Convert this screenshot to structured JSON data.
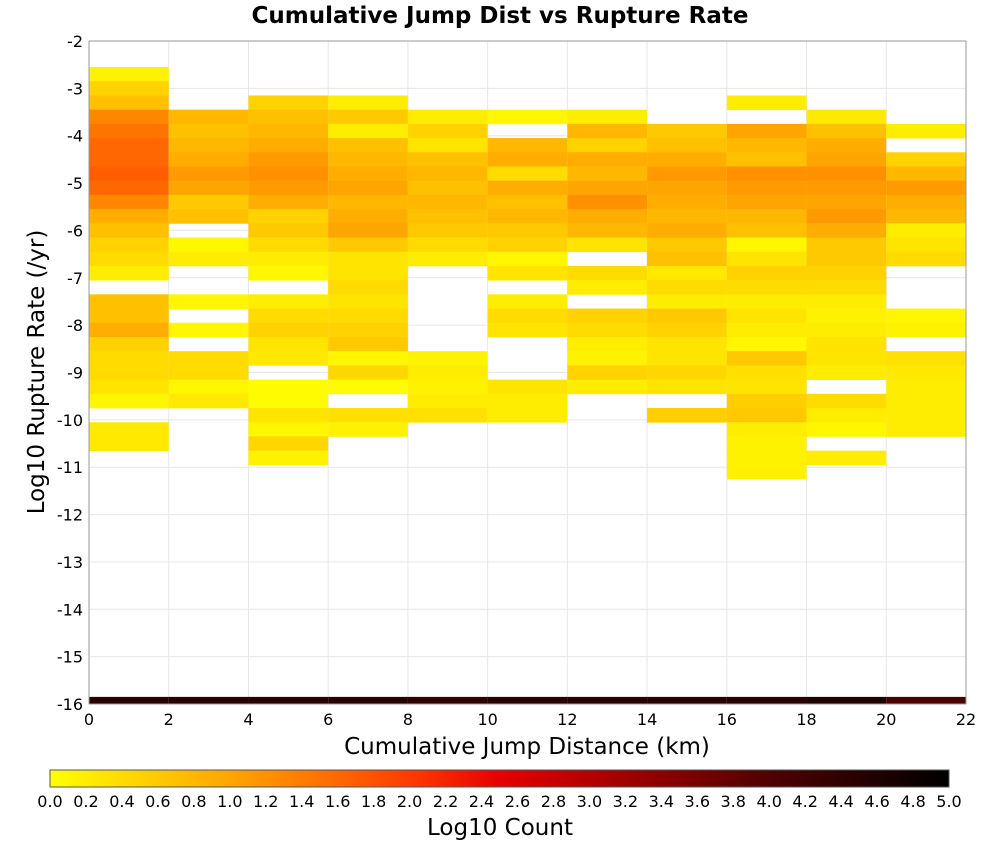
{
  "chart_data": {
    "type": "heatmap",
    "title": "Cumulative Jump Dist vs Rupture Rate",
    "xlabel": "Cumulative Jump Distance (km)",
    "ylabel": "Log10 Rupture Rate (/yr)",
    "colorbar_label": "Log10 Count",
    "xlim": [
      0,
      22
    ],
    "ylim": [
      -16,
      -2
    ],
    "x_ticks": [
      0,
      2,
      4,
      6,
      8,
      10,
      12,
      14,
      16,
      18,
      20,
      22
    ],
    "y_ticks": [
      -2,
      -3,
      -4,
      -5,
      -6,
      -7,
      -8,
      -9,
      -10,
      -11,
      -12,
      -13,
      -14,
      -15,
      -16
    ],
    "colorbar_range": [
      0,
      5
    ],
    "colorbar_ticks": [
      "0.0",
      "0.2",
      "0.4",
      "0.6",
      "0.8",
      "1.0",
      "1.2",
      "1.4",
      "1.6",
      "1.8",
      "2.0",
      "2.2",
      "2.4",
      "2.6",
      "2.8",
      "3.0",
      "3.2",
      "3.4",
      "3.6",
      "3.8",
      "4.0",
      "4.2",
      "4.4",
      "4.6",
      "4.8",
      "5.0"
    ],
    "colorscale": [
      "#ffff00",
      "#ffd200",
      "#ffa500",
      "#ff7300",
      "#ff3c00",
      "#e60000",
      "#b40000",
      "#820000",
      "#500000",
      "#280000",
      "#000000"
    ],
    "x_bin_width": 2,
    "y_bin_height": 0.3,
    "grid": true,
    "columns": [
      {
        "x0": 0,
        "cells": [
          [
            -2.85,
            0.15
          ],
          [
            -3.15,
            0.5
          ],
          [
            -3.45,
            0.7
          ],
          [
            -3.75,
            1.3
          ],
          [
            -4.05,
            1.5
          ],
          [
            -4.35,
            1.6
          ],
          [
            -4.65,
            1.6
          ],
          [
            -4.95,
            1.7
          ],
          [
            -5.25,
            1.6
          ],
          [
            -5.55,
            1.3
          ],
          [
            -5.85,
            0.9
          ],
          [
            -6.15,
            0.7
          ],
          [
            -6.45,
            0.5
          ],
          [
            -6.75,
            0.4
          ],
          [
            -7.05,
            0.2
          ],
          [
            -7.65,
            0.7
          ],
          [
            -7.95,
            0.7
          ],
          [
            -8.25,
            0.9
          ],
          [
            -8.55,
            0.5
          ],
          [
            -8.85,
            0.4
          ],
          [
            -9.15,
            0.4
          ],
          [
            -9.45,
            0.3
          ],
          [
            -9.75,
            0.1
          ],
          [
            -10.35,
            0.25
          ],
          [
            -10.65,
            0.25
          ]
        ]
      },
      {
        "x0": 2,
        "cells": [
          [
            -3.75,
            0.8
          ],
          [
            -4.05,
            0.7
          ],
          [
            -4.35,
            0.8
          ],
          [
            -4.65,
            0.9
          ],
          [
            -4.95,
            1.1
          ],
          [
            -5.25,
            1.0
          ],
          [
            -5.55,
            0.6
          ],
          [
            -5.85,
            0.7
          ],
          [
            -6.45,
            0.1
          ],
          [
            -6.75,
            0.2
          ],
          [
            -7.65,
            0.1
          ],
          [
            -8.25,
            0.1
          ],
          [
            -8.85,
            0.4
          ],
          [
            -9.15,
            0.4
          ],
          [
            -9.45,
            0.1
          ],
          [
            -9.75,
            0.25
          ]
        ]
      },
      {
        "x0": 4,
        "cells": [
          [
            -3.45,
            0.5
          ],
          [
            -3.75,
            0.7
          ],
          [
            -4.05,
            0.8
          ],
          [
            -4.35,
            0.9
          ],
          [
            -4.65,
            1.1
          ],
          [
            -4.95,
            1.2
          ],
          [
            -5.25,
            1.1
          ],
          [
            -5.55,
            0.9
          ],
          [
            -5.85,
            0.5
          ],
          [
            -6.15,
            0.6
          ],
          [
            -6.45,
            0.4
          ],
          [
            -6.75,
            0.2
          ],
          [
            -7.05,
            0.1
          ],
          [
            -7.65,
            0.2
          ],
          [
            -7.95,
            0.4
          ],
          [
            -8.25,
            0.5
          ],
          [
            -8.55,
            0.3
          ],
          [
            -8.85,
            0.25
          ],
          [
            -9.45,
            0.05
          ],
          [
            -9.75,
            0.05
          ],
          [
            -10.05,
            0.3
          ],
          [
            -10.35,
            0.1
          ],
          [
            -10.65,
            0.45
          ],
          [
            -10.95,
            0.15
          ]
        ]
      },
      {
        "x0": 6,
        "cells": [
          [
            -3.45,
            0.2
          ],
          [
            -3.75,
            0.6
          ],
          [
            -4.05,
            0.2
          ],
          [
            -4.35,
            0.7
          ],
          [
            -4.65,
            0.8
          ],
          [
            -4.95,
            0.9
          ],
          [
            -5.25,
            1.0
          ],
          [
            -5.55,
            0.8
          ],
          [
            -5.85,
            0.9
          ],
          [
            -6.15,
            1.0
          ],
          [
            -6.45,
            0.6
          ],
          [
            -6.75,
            0.3
          ],
          [
            -7.05,
            0.3
          ],
          [
            -7.35,
            0.4
          ],
          [
            -7.65,
            0.3
          ],
          [
            -7.95,
            0.4
          ],
          [
            -8.25,
            0.5
          ],
          [
            -8.55,
            0.6
          ],
          [
            -8.85,
            0.1
          ],
          [
            -9.15,
            0.45
          ],
          [
            -9.45,
            0.05
          ],
          [
            -10.05,
            0.35
          ],
          [
            -10.35,
            0.15
          ]
        ]
      },
      {
        "x0": 8,
        "cells": [
          [
            -3.75,
            0.2
          ],
          [
            -4.05,
            0.5
          ],
          [
            -4.35,
            0.3
          ],
          [
            -4.65,
            0.7
          ],
          [
            -4.95,
            0.8
          ],
          [
            -5.25,
            0.7
          ],
          [
            -5.55,
            0.8
          ],
          [
            -5.85,
            0.7
          ],
          [
            -6.15,
            0.6
          ],
          [
            -6.45,
            0.4
          ],
          [
            -6.75,
            0.2
          ],
          [
            -8.85,
            0.15
          ],
          [
            -9.15,
            0.2
          ],
          [
            -9.45,
            0.15
          ],
          [
            -9.75,
            0.2
          ],
          [
            -10.05,
            0.35
          ]
        ]
      },
      {
        "x0": 10,
        "cells": [
          [
            -3.75,
            0.1
          ],
          [
            -4.35,
            0.8
          ],
          [
            -4.65,
            0.9
          ],
          [
            -4.95,
            0.4
          ],
          [
            -5.25,
            0.9
          ],
          [
            -5.55,
            0.7
          ],
          [
            -5.85,
            0.8
          ],
          [
            -6.15,
            0.6
          ],
          [
            -6.45,
            0.5
          ],
          [
            -6.75,
            0.1
          ],
          [
            -7.05,
            0.3
          ],
          [
            -7.65,
            0.2
          ],
          [
            -7.95,
            0.4
          ],
          [
            -8.25,
            0.3
          ],
          [
            -9.45,
            0.3
          ],
          [
            -9.75,
            0.2
          ],
          [
            -10.05,
            0.2
          ]
        ]
      },
      {
        "x0": 12,
        "cells": [
          [
            -3.75,
            0.2
          ],
          [
            -4.05,
            0.8
          ],
          [
            -4.35,
            0.5
          ],
          [
            -4.65,
            0.9
          ],
          [
            -4.95,
            0.8
          ],
          [
            -5.25,
            1.0
          ],
          [
            -5.55,
            1.2
          ],
          [
            -5.85,
            0.9
          ],
          [
            -6.15,
            0.8
          ],
          [
            -6.45,
            0.3
          ],
          [
            -7.05,
            0.4
          ],
          [
            -7.35,
            0.2
          ],
          [
            -7.95,
            0.5
          ],
          [
            -8.25,
            0.4
          ],
          [
            -8.55,
            0.2
          ],
          [
            -8.85,
            0.15
          ],
          [
            -9.15,
            0.5
          ],
          [
            -9.45,
            0.2
          ]
        ]
      },
      {
        "x0": 14,
        "cells": [
          [
            -4.05,
            0.6
          ],
          [
            -4.35,
            0.7
          ],
          [
            -4.65,
            0.9
          ],
          [
            -4.95,
            1.1
          ],
          [
            -5.25,
            1.0
          ],
          [
            -5.55,
            0.9
          ],
          [
            -5.85,
            0.8
          ],
          [
            -6.15,
            0.9
          ],
          [
            -6.45,
            0.6
          ],
          [
            -6.75,
            0.7
          ],
          [
            -7.05,
            0.25
          ],
          [
            -7.35,
            0.4
          ],
          [
            -7.65,
            0.2
          ],
          [
            -7.95,
            0.6
          ],
          [
            -8.25,
            0.5
          ],
          [
            -8.55,
            0.3
          ],
          [
            -8.85,
            0.3
          ],
          [
            -9.15,
            0.45
          ],
          [
            -9.45,
            0.3
          ],
          [
            -10.05,
            0.55
          ]
        ]
      },
      {
        "x0": 16,
        "cells": [
          [
            -3.45,
            0.2
          ],
          [
            -4.05,
            1.0
          ],
          [
            -4.35,
            0.8
          ],
          [
            -4.65,
            0.7
          ],
          [
            -4.95,
            1.2
          ],
          [
            -5.25,
            1.1
          ],
          [
            -5.55,
            1.0
          ],
          [
            -5.85,
            0.8
          ],
          [
            -6.15,
            0.7
          ],
          [
            -6.45,
            0.1
          ],
          [
            -6.75,
            0.3
          ],
          [
            -7.05,
            0.5
          ],
          [
            -7.35,
            0.4
          ],
          [
            -7.65,
            0.2
          ],
          [
            -7.95,
            0.3
          ],
          [
            -8.25,
            0.2
          ],
          [
            -8.55,
            0.1
          ],
          [
            -8.85,
            0.6
          ],
          [
            -9.15,
            0.35
          ],
          [
            -9.45,
            0.3
          ],
          [
            -9.75,
            0.55
          ],
          [
            -10.05,
            0.6
          ],
          [
            -10.35,
            0.2
          ],
          [
            -10.65,
            0.15
          ],
          [
            -10.95,
            0.15
          ],
          [
            -11.25,
            0.15
          ]
        ]
      },
      {
        "x0": 18,
        "cells": [
          [
            -3.75,
            0.25
          ],
          [
            -4.05,
            0.7
          ],
          [
            -4.35,
            0.9
          ],
          [
            -4.65,
            1.0
          ],
          [
            -4.95,
            1.2
          ],
          [
            -5.25,
            1.1
          ],
          [
            -5.55,
            1.0
          ],
          [
            -5.85,
            1.1
          ],
          [
            -6.15,
            0.9
          ],
          [
            -6.45,
            0.6
          ],
          [
            -6.75,
            0.6
          ],
          [
            -7.05,
            0.5
          ],
          [
            -7.35,
            0.4
          ],
          [
            -7.65,
            0.2
          ],
          [
            -7.95,
            0.15
          ],
          [
            -8.25,
            0.2
          ],
          [
            -8.55,
            0.3
          ],
          [
            -8.85,
            0.3
          ],
          [
            -9.15,
            0.2
          ],
          [
            -9.75,
            0.4
          ],
          [
            -10.05,
            0.2
          ],
          [
            -10.35,
            0.1
          ],
          [
            -10.95,
            0.2
          ]
        ]
      },
      {
        "x0": 20,
        "cells": [
          [
            -4.05,
            0.2
          ],
          [
            -4.65,
            0.5
          ],
          [
            -4.95,
            0.8
          ],
          [
            -5.25,
            1.1
          ],
          [
            -5.55,
            0.9
          ],
          [
            -5.85,
            0.8
          ],
          [
            -6.15,
            0.2
          ],
          [
            -6.45,
            0.3
          ],
          [
            -6.75,
            0.4
          ],
          [
            -7.95,
            0.1
          ],
          [
            -8.25,
            0.15
          ],
          [
            -8.85,
            0.35
          ],
          [
            -9.15,
            0.25
          ],
          [
            -9.45,
            0.2
          ],
          [
            -9.75,
            0.2
          ],
          [
            -10.05,
            0.2
          ],
          [
            -10.35,
            0.2
          ]
        ]
      }
    ],
    "bottom_row": {
      "y0": -16,
      "y1": -15.85,
      "values": [
        4.5,
        4.5,
        4.5,
        4.5,
        4.4,
        4.5,
        4.5,
        4.5,
        4.5,
        4.6,
        4.1
      ]
    }
  }
}
